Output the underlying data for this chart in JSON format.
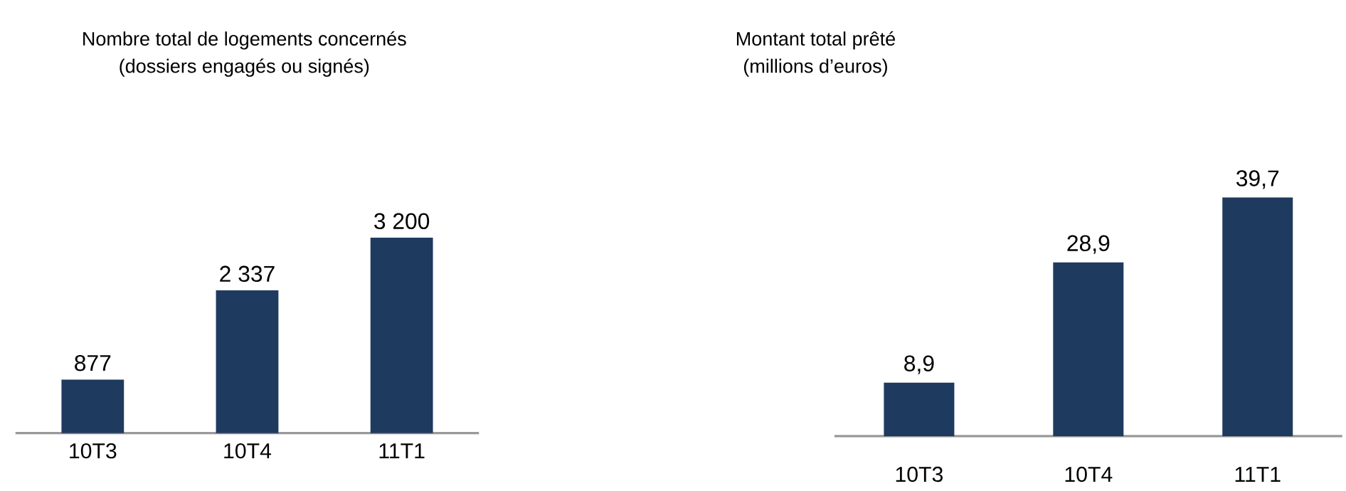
{
  "chart_data": [
    {
      "type": "bar",
      "title": "Nombre total de logements concernés",
      "subtitle": "(dossiers engagés ou signés)",
      "categories": [
        "10T3",
        "10T4",
        "11T1"
      ],
      "values": [
        877,
        2337,
        3200
      ],
      "value_labels": [
        "877",
        "2 337",
        "3 200"
      ],
      "color": "#1f3a5f"
    },
    {
      "type": "bar",
      "title": "Montant total prêté",
      "subtitle": "(millions d’euros)",
      "categories": [
        "10T3",
        "10T4",
        "11T1"
      ],
      "values": [
        8.9,
        28.9,
        39.7
      ],
      "value_labels": [
        "8,9",
        "28,9",
        "39,7"
      ],
      "color": "#1f3a5f"
    }
  ]
}
